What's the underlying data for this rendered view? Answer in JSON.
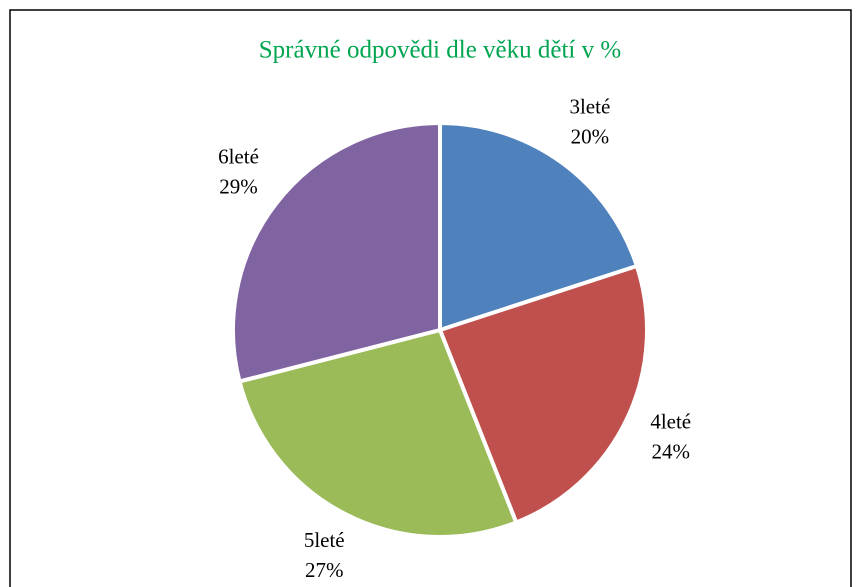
{
  "chart_data": {
    "type": "pie",
    "title": "Správné odpovědi dle věku dětí v %",
    "categories": [
      "3leté",
      "4leté",
      "5leté",
      "6leté"
    ],
    "values": [
      20,
      24,
      27,
      29
    ],
    "value_labels": [
      "20%",
      "24%",
      "27%",
      "29%"
    ],
    "colors": [
      "#4f81bd",
      "#c0504d",
      "#9bbb59",
      "#8064a2"
    ],
    "title_color": "#00a550"
  }
}
